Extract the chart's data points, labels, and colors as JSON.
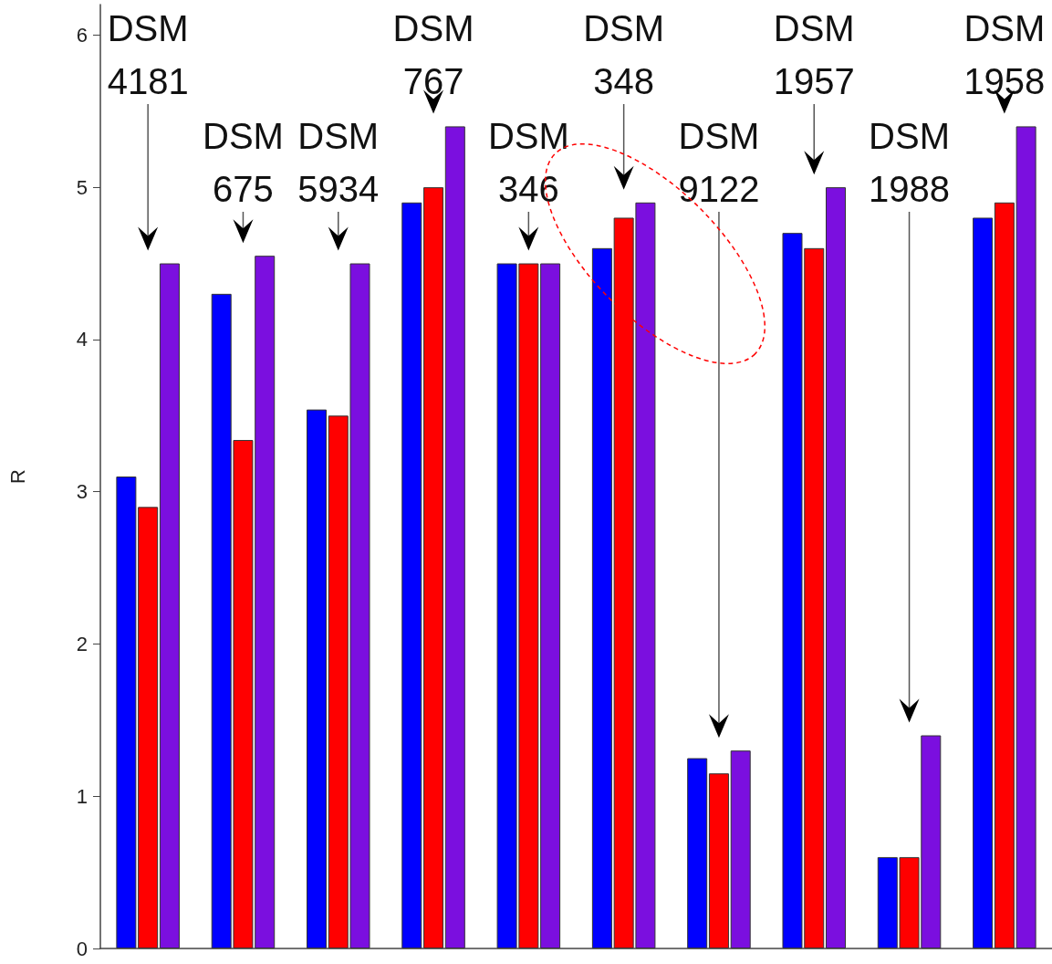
{
  "chart_data": {
    "type": "bar",
    "ylabel": "R",
    "categories": [
      null,
      null,
      null,
      null,
      null,
      null,
      null,
      null,
      null,
      null
    ],
    "series": [
      {
        "color": "#0000ff",
        "values": [
          3.1,
          4.3,
          3.54,
          4.9,
          4.5,
          4.6,
          1.25,
          4.7,
          0.6,
          4.8
        ]
      },
      {
        "color": "#ff0000",
        "values": [
          2.9,
          3.34,
          3.5,
          5.0,
          4.5,
          4.8,
          1.15,
          4.6,
          0.6,
          4.9
        ]
      },
      {
        "color": "#7b0fdf",
        "values": [
          4.5,
          4.55,
          4.5,
          5.4,
          4.5,
          4.9,
          1.3,
          5.0,
          1.4,
          5.4
        ]
      }
    ],
    "ylim": [
      0,
      6.2
    ],
    "yticks": [
      0,
      1,
      2,
      3,
      4,
      5,
      6
    ],
    "grid": false,
    "annotations": [
      "DSM 4181",
      "DSM 675",
      "DSM 5934",
      "DSM 767",
      "DSM 346",
      "DSM 348",
      "DSM 9122",
      "DSM 1957",
      "DSM 1988",
      "DSM 1958"
    ]
  }
}
